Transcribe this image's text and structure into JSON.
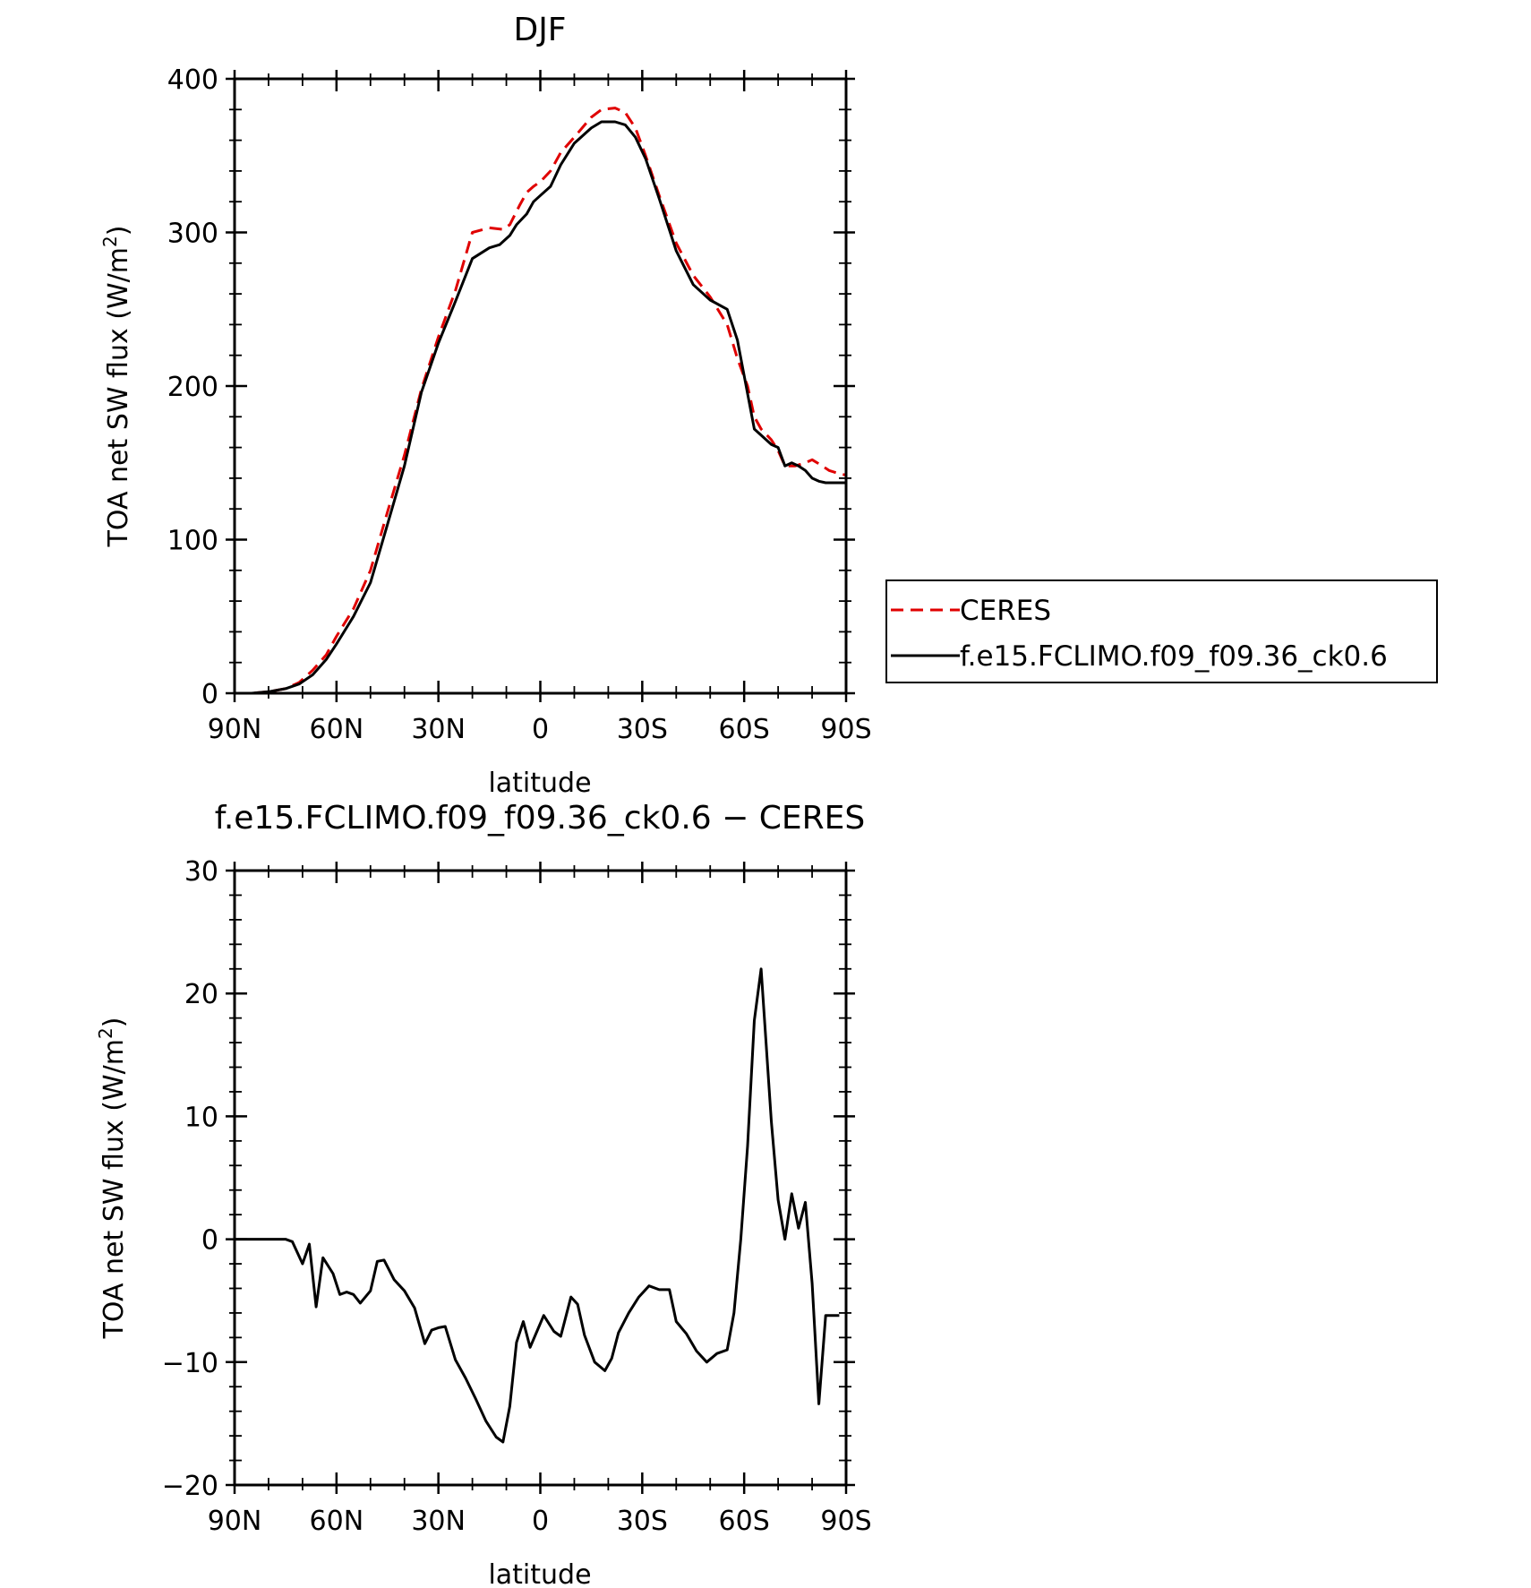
{
  "chart_data": [
    {
      "type": "line",
      "title": "DJF",
      "xlabel": "latitude",
      "ylabel": "TOA net SW flux (W/m²)",
      "ylabel_parts": {
        "main": "TOA net SW flux (W/m",
        "sup": "2",
        "close": ")"
      },
      "xlim": [
        90,
        -90
      ],
      "ylim": [
        0,
        400
      ],
      "xticks": [
        90,
        60,
        30,
        0,
        -30,
        -60,
        -90
      ],
      "xtick_labels": [
        "90N",
        "60N",
        "30N",
        "0",
        "30S",
        "60S",
        "90S"
      ],
      "yticks": [
        0,
        100,
        200,
        300,
        400
      ],
      "ytick_labels": [
        "0",
        "100",
        "200",
        "300",
        "400"
      ],
      "grid": false,
      "legend_position": "right, outside the axes",
      "colors": {
        "axes": "#000000",
        "ceres": "#e00000",
        "model": "#000000"
      },
      "series": [
        {
          "name": "CERES",
          "color": "#e00000",
          "style": "dashed",
          "x": [
            90,
            85,
            80,
            75,
            71,
            67,
            63,
            60,
            55,
            50,
            45,
            40,
            35,
            30,
            25,
            20,
            15,
            11,
            9,
            6,
            4,
            2,
            0,
            -3,
            -6,
            -10,
            -15,
            -18,
            -22,
            -25,
            -28,
            -31,
            -35,
            -40,
            -45,
            -50,
            -55,
            -58,
            -61,
            -63,
            -65,
            -68,
            -70,
            -72,
            -75,
            -78,
            -80,
            -83,
            -85,
            -88,
            -90
          ],
          "y": [
            0,
            0,
            1,
            3,
            7,
            15,
            25,
            37,
            55,
            80,
            118,
            155,
            198,
            232,
            262,
            300,
            303,
            302,
            305,
            318,
            326,
            330,
            333,
            340,
            352,
            362,
            375,
            380,
            381,
            378,
            368,
            350,
            324,
            293,
            272,
            258,
            240,
            218,
            200,
            180,
            172,
            165,
            158,
            148,
            148,
            150,
            152,
            148,
            145,
            143,
            142
          ]
        },
        {
          "name": "f.e15.FCLIMO.f09_f09.36_ck0.6",
          "color": "#000000",
          "style": "solid",
          "x": [
            90,
            85,
            80,
            75,
            71,
            67,
            63,
            60,
            55,
            50,
            45,
            40,
            35,
            30,
            25,
            20,
            15,
            12,
            9,
            7,
            4,
            2,
            0,
            -3,
            -6,
            -10,
            -15,
            -18,
            -22,
            -25,
            -28,
            -31,
            -35,
            -40,
            -45,
            -50,
            -55,
            -58,
            -61,
            -63,
            -65,
            -68,
            -70,
            -72,
            -74,
            -76,
            -78,
            -80,
            -82,
            -84,
            -86,
            -88,
            -90
          ],
          "y": [
            0,
            0,
            1,
            3,
            6,
            12,
            22,
            32,
            50,
            72,
            110,
            148,
            196,
            228,
            255,
            283,
            290,
            292,
            298,
            305,
            312,
            320,
            324,
            330,
            344,
            358,
            368,
            372,
            372,
            370,
            362,
            348,
            322,
            288,
            266,
            256,
            250,
            230,
            195,
            172,
            168,
            162,
            160,
            148,
            150,
            148,
            145,
            140,
            138,
            137,
            137,
            137,
            137
          ]
        }
      ]
    },
    {
      "type": "line",
      "title": "f.e15.FCLIMO.f09_f09.36_ck0.6 − CERES",
      "xlabel": "latitude",
      "ylabel": "TOA net SW flux (W/m²)",
      "ylabel_parts": {
        "main": "TOA net SW flux (W/m",
        "sup": "2",
        "close": ")"
      },
      "xlim": [
        90,
        -90
      ],
      "ylim": [
        -20,
        30
      ],
      "xticks": [
        90,
        60,
        30,
        0,
        -30,
        -60,
        -90
      ],
      "xtick_labels": [
        "90N",
        "60N",
        "30N",
        "0",
        "30S",
        "60S",
        "90S"
      ],
      "yticks": [
        -20,
        -10,
        0,
        10,
        20,
        30
      ],
      "ytick_labels": [
        "−20",
        "−10",
        "0",
        "10",
        "20",
        "30"
      ],
      "grid": false,
      "colors": {
        "axes": "#000000",
        "line": "#000000"
      },
      "series": [
        {
          "name": "",
          "color": "#000000",
          "style": "solid",
          "x": [
            90,
            85,
            80,
            75,
            73,
            70,
            68,
            66,
            64,
            61,
            59,
            57,
            55,
            53,
            50,
            48,
            46,
            43,
            40,
            37,
            34,
            32,
            30,
            28,
            25,
            22,
            19,
            16,
            13,
            11,
            9,
            7,
            5,
            3,
            1,
            -1,
            -4,
            -6,
            -9,
            -11,
            -13,
            -16,
            -19,
            -21,
            -23,
            -26,
            -29,
            -32,
            -35,
            -38,
            -40,
            -43,
            -46,
            -49,
            -52,
            -55,
            -57,
            -59,
            -61,
            -63,
            -65,
            -68,
            -70,
            -72,
            -74,
            -76,
            -78,
            -80,
            -82,
            -84,
            -86,
            -88
          ],
          "y": [
            0,
            0,
            0,
            0,
            -0.2,
            -2,
            -0.4,
            -5.5,
            -1.5,
            -2.8,
            -4.5,
            -4.3,
            -4.5,
            -5.2,
            -4.2,
            -1.8,
            -1.7,
            -3.3,
            -4.2,
            -5.6,
            -8.5,
            -7.4,
            -7.2,
            -7.1,
            -9.8,
            -11.3,
            -13,
            -14.8,
            -16.1,
            -16.5,
            -13.6,
            -8.4,
            -6.7,
            -8.8,
            -7.5,
            -6.2,
            -7.5,
            -7.9,
            -4.7,
            -5.3,
            -7.8,
            -10,
            -10.7,
            -9.7,
            -7.6,
            -6,
            -4.7,
            -3.8,
            -4.1,
            -4.1,
            -6.7,
            -7.7,
            -9.1,
            -10,
            -9.3,
            -9,
            -6,
            0,
            7.6,
            17.8,
            22,
            9.6,
            3.2,
            0,
            3.7,
            0.9,
            3,
            -3.6,
            -13.4,
            -6.2,
            -6.2,
            -6.2
          ]
        }
      ]
    }
  ],
  "legend": {
    "items": [
      {
        "label": "CERES",
        "color": "#e00000",
        "style": "dashed"
      },
      {
        "label": "f.e15.FCLIMO.f09_f09.36_ck0.6",
        "color": "#000000",
        "style": "solid"
      }
    ]
  }
}
